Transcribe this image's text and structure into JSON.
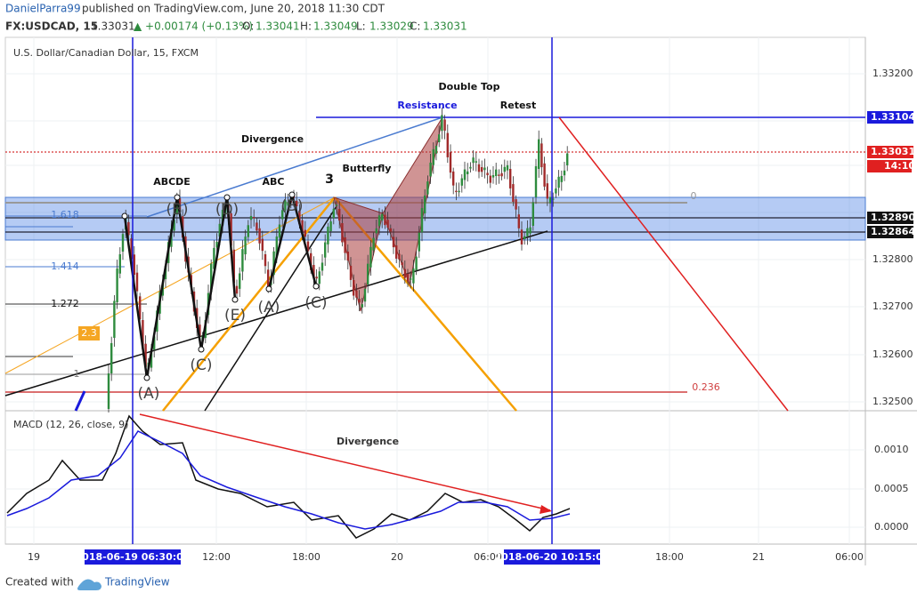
{
  "header": {
    "author": "DanielParra99",
    "published": "published on TradingView.com, June 20, 2018 11:30 CDT",
    "symbol": "FX:USDCAD, 15",
    "price": "1.33031",
    "change": "▲ +0.00174 (+0.13%)",
    "ohlc": [
      {
        "label": "O:",
        "value": "1.33041"
      },
      {
        "label": "H:",
        "value": "1.33049"
      },
      {
        "label": "L:",
        "value": "1.33029"
      },
      {
        "label": "C:",
        "value": "1.33031"
      }
    ]
  },
  "chart": {
    "title": "U.S. Dollar/Canadian Dollar, 15, FXCM",
    "price_axis": [
      "1.33200",
      "1.32800",
      "1.32700",
      "1.32600",
      "1.32500"
    ],
    "price_tags": [
      "1.33104",
      "1.33031",
      "14:10",
      "1.32890",
      "1.32864"
    ],
    "annotations": [
      "Double Top",
      "Resistance",
      "Retest",
      "Divergence",
      "3",
      "Butterfly",
      "ABCDE",
      "ABC"
    ],
    "pattern_labels": [
      "(B)",
      "(D)",
      "(B)",
      "(E)",
      "(A)",
      "(C)",
      "(C)",
      "(A)"
    ],
    "fib_labels": [
      "1.618",
      "1.414",
      "1.272",
      "1",
      "2.3",
      "0",
      "0.236"
    ]
  },
  "macd": {
    "title": "MACD (12, 26, close, 9)",
    "axis": [
      "0.0010",
      "0.0005",
      "0.0000"
    ],
    "annotation": "Divergence"
  },
  "time_axis": {
    "labels": [
      "19",
      "12:00",
      "18:00",
      "20",
      "06:00",
      "18:00",
      "21",
      "06:00"
    ],
    "markers": [
      "2018-06-19 06:30:00",
      "2018-06-20 10:15:00"
    ]
  },
  "footer": {
    "created_with": "Created with",
    "brand": "TradingView"
  }
}
